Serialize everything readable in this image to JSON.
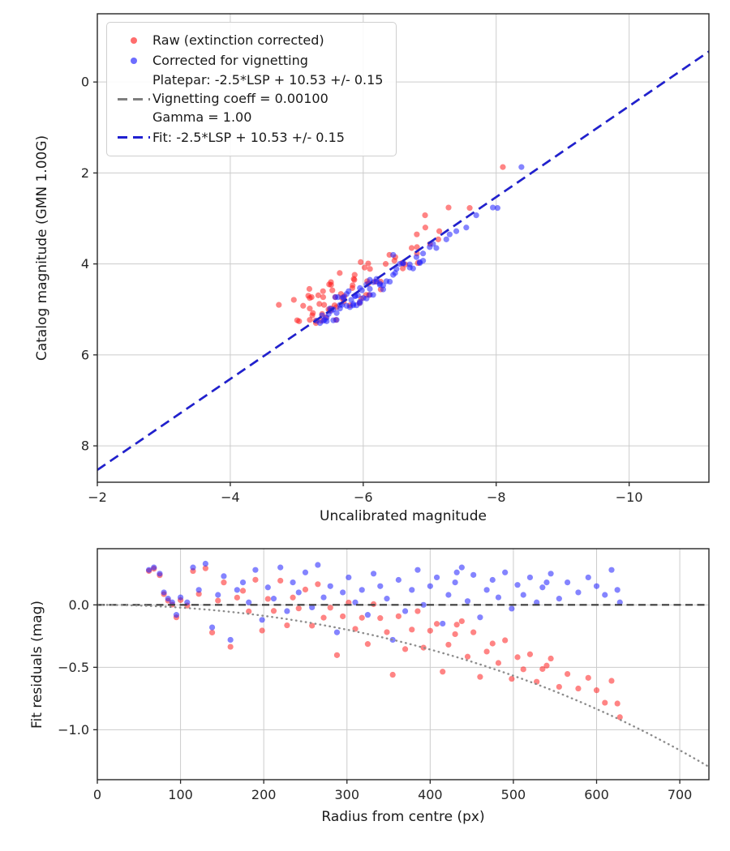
{
  "colors": {
    "raw": "#ff1f1f",
    "corrected": "#1f1fff",
    "fit_line": "#2020d0",
    "platepar_line": "#7f7f7f",
    "zero_line": "#3c3c3c",
    "vignetting_curve": "#8c8c8c",
    "grid": "#cccccc",
    "axes": "#262626",
    "background": "#ffffff"
  },
  "model": {
    "photometric_offset": 10.53,
    "fit_stddev": 0.15,
    "vignetting_coeff": 0.001,
    "gamma": 1.0,
    "vignetting_loss_mag": "vloss(r) = -10*log10(cos(0.001*r))"
  },
  "stars": {
    "columns": [
      "radius_px",
      "uncalibrated_mag_vignetting_corrected",
      "fit_residual_mag"
    ],
    "derivation": {
      "top_corrected_point": "x = m, y = m + 10.53 + e",
      "top_raw_point": "x = m + vloss(r), y = m + 10.53 + e",
      "bottom_corrected_point": "x = r, y = e",
      "bottom_raw_point": "x = r, y = e - vloss(r)"
    },
    "rows": [
      [
        62,
        -5.95,
        0.28
      ],
      [
        68,
        -5.6,
        0.3
      ],
      [
        75,
        -6.1,
        0.25
      ],
      [
        80,
        -5.45,
        0.1
      ],
      [
        85,
        -6.6,
        0.05
      ],
      [
        90,
        -5.3,
        0.02
      ],
      [
        95,
        -5.7,
        -0.08
      ],
      [
        100,
        -6.2,
        0.06
      ],
      [
        108,
        -5.52,
        0.02
      ],
      [
        115,
        -6.85,
        0.3
      ],
      [
        122,
        -5.4,
        0.12
      ],
      [
        130,
        -6.3,
        0.33
      ],
      [
        138,
        -5.62,
        -0.18
      ],
      [
        145,
        -7.05,
        0.08
      ],
      [
        152,
        -5.85,
        0.23
      ],
      [
        160,
        -6.45,
        -0.28
      ],
      [
        168,
        -5.35,
        0.12
      ],
      [
        175,
        -6.7,
        0.18
      ],
      [
        182,
        -5.55,
        0.02
      ],
      [
        190,
        -6.05,
        0.28
      ],
      [
        198,
        -5.75,
        -0.12
      ],
      [
        205,
        -6.9,
        0.14
      ],
      [
        212,
        -5.48,
        0.05
      ],
      [
        220,
        -6.15,
        0.3
      ],
      [
        228,
        -5.95,
        -0.05
      ],
      [
        235,
        -7.25,
        0.18
      ],
      [
        242,
        -5.65,
        0.1
      ],
      [
        250,
        -6.4,
        0.26
      ],
      [
        258,
        -5.38,
        -0.02
      ],
      [
        265,
        -6.75,
        0.32
      ],
      [
        272,
        -5.88,
        0.06
      ],
      [
        280,
        -6.25,
        0.15
      ],
      [
        288,
        -5.58,
        -0.22
      ],
      [
        295,
        -7.0,
        0.1
      ],
      [
        302,
        -5.8,
        0.22
      ],
      [
        310,
        -6.55,
        0.02
      ],
      [
        318,
        -5.42,
        0.12
      ],
      [
        325,
        -6.1,
        -0.08
      ],
      [
        332,
        -5.95,
        0.25
      ],
      [
        340,
        -7.4,
        0.15
      ],
      [
        348,
        -5.68,
        0.05
      ],
      [
        355,
        -8.38,
        -0.28
      ],
      [
        362,
        -6.35,
        0.2
      ],
      [
        370,
        -5.5,
        -0.05
      ],
      [
        378,
        -6.8,
        0.12
      ],
      [
        385,
        -5.9,
        0.28
      ],
      [
        392,
        -6.2,
        0.0
      ],
      [
        400,
        -5.6,
        0.15
      ],
      [
        408,
        -7.1,
        0.22
      ],
      [
        415,
        -5.78,
        -0.15
      ],
      [
        422,
        -6.5,
        0.08
      ],
      [
        430,
        -5.45,
        0.18
      ],
      [
        432,
        -8.02,
        0.26
      ],
      [
        438,
        -6.9,
        0.3
      ],
      [
        445,
        -5.98,
        0.03
      ],
      [
        452,
        -6.3,
        0.24
      ],
      [
        460,
        -5.7,
        -0.1
      ],
      [
        468,
        -7.3,
        0.12
      ],
      [
        475,
        -5.85,
        0.2
      ],
      [
        482,
        -6.6,
        0.06
      ],
      [
        490,
        -5.55,
        0.26
      ],
      [
        498,
        -6.05,
        -0.03
      ],
      [
        505,
        -6.45,
        0.16
      ],
      [
        512,
        -5.92,
        0.08
      ],
      [
        520,
        -7.55,
        0.22
      ],
      [
        528,
        -6.15,
        0.02
      ],
      [
        535,
        -5.75,
        0.14
      ],
      [
        540,
        -7.95,
        0.18
      ],
      [
        545,
        -6.7,
        0.25
      ],
      [
        555,
        -5.88,
        0.05
      ],
      [
        565,
        -6.25,
        0.18
      ],
      [
        578,
        -7.7,
        0.1
      ],
      [
        590,
        -6.0,
        0.22
      ],
      [
        600,
        -6.48,
        0.15
      ],
      [
        610,
        -5.82,
        0.08
      ],
      [
        618,
        -6.85,
        0.28
      ],
      [
        625,
        -6.1,
        0.12
      ],
      [
        628,
        -5.65,
        0.02
      ]
    ]
  },
  "chart_data": [
    {
      "type": "scatter",
      "xlabel": "Uncalibrated magnitude",
      "ylabel": "Catalog magnitude (GMN 1.00G)",
      "xlim": [
        -2,
        -11.2
      ],
      "ylim_bottom_top": [
        8.8,
        -1.5
      ],
      "grid": true,
      "xticks": {
        "values": [
          -2,
          -4,
          -6,
          -8,
          -10
        ],
        "labels": [
          "−2",
          "−4",
          "−6",
          "−8",
          "−10"
        ]
      },
      "yticks": {
        "values": [
          0,
          2,
          4,
          6,
          8
        ],
        "labels": [
          "0",
          "2",
          "4",
          "6",
          "8"
        ]
      },
      "legend": {
        "position": "upper left",
        "entries": [
          {
            "symbol": "dot",
            "color_key": "raw",
            "label": "Raw (extinction corrected)"
          },
          {
            "symbol": "dot",
            "color_key": "corrected",
            "label": "Corrected for vignetting"
          },
          {
            "symbol": "dash",
            "color_key": "platepar_line",
            "label_lines": [
              "Platepar: -2.5*LSP + 10.53 +/- 0.15",
              "Vignetting coeff = 0.00100",
              "Gamma = 1.00"
            ]
          },
          {
            "symbol": "dash",
            "color_key": "fit_line",
            "label": "Fit: -2.5*LSP + 10.53 +/- 0.15"
          }
        ]
      },
      "series": [
        {
          "name": "raw",
          "marker": "dot",
          "color_key": "raw",
          "points": "derived from stars.rows: x = m + vloss(r), y = m + 10.53 + e"
        },
        {
          "name": "corrected",
          "marker": "dot",
          "color_key": "corrected",
          "points": "derived from stars.rows: x = m, y = m + 10.53 + e"
        }
      ],
      "lines": [
        {
          "name": "platepar",
          "style": "dashed",
          "color_key": "platepar_line",
          "equation": "y = x + 10.53"
        },
        {
          "name": "fit",
          "style": "dashed",
          "color_key": "fit_line",
          "equation": "y = x + 10.53"
        }
      ]
    },
    {
      "type": "scatter",
      "xlabel": "Radius from centre (px)",
      "ylabel": "Fit residuals (mag)",
      "xlim": [
        0,
        735
      ],
      "ylim_bottom_top": [
        -1.4,
        0.45
      ],
      "grid": true,
      "xticks": {
        "values": [
          0,
          100,
          200,
          300,
          400,
          500,
          600,
          700
        ],
        "labels": [
          "0",
          "100",
          "200",
          "300",
          "400",
          "500",
          "600",
          "700"
        ]
      },
      "yticks": {
        "values": [
          0,
          -0.5,
          -1
        ],
        "labels": [
          "0.0",
          "−0.5",
          "−1.0"
        ]
      },
      "series": [
        {
          "name": "raw",
          "marker": "dot",
          "color_key": "raw",
          "points": "derived from stars.rows: x = r, y = e - vloss(r)"
        },
        {
          "name": "corrected",
          "marker": "dot",
          "color_key": "corrected",
          "points": "derived from stars.rows: x = r, y = e"
        }
      ],
      "lines": [
        {
          "name": "zero",
          "style": "dashed",
          "color_key": "zero_line",
          "equation": "y = 0"
        },
        {
          "name": "vignetting-model",
          "style": "dotted",
          "color_key": "vignetting_curve",
          "equation": "y = 10*log10(cos(0.001*r))"
        }
      ]
    }
  ]
}
